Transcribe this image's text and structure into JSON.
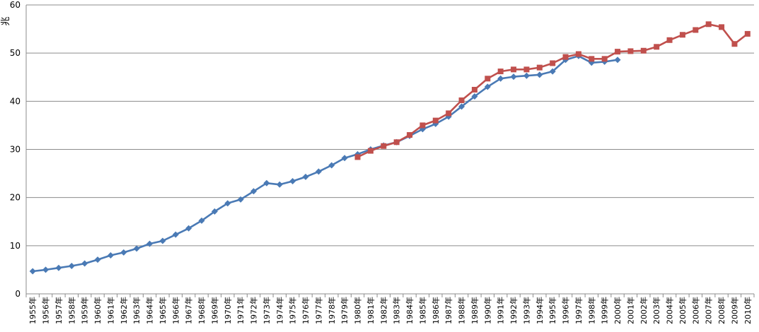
{
  "chart_data": {
    "type": "line",
    "ylabel": "兆",
    "ylim": [
      0,
      60
    ],
    "yticks": [
      0,
      10,
      20,
      30,
      40,
      50,
      60
    ],
    "grid": "horizontal",
    "legend": "none",
    "categories": [
      "1955年",
      "1956年",
      "1957年",
      "1958年",
      "1959年",
      "1960年",
      "1961年",
      "1962年",
      "1963年",
      "1964年",
      "1965年",
      "1966年",
      "1967年",
      "1968年",
      "1969年",
      "1970年",
      "1971年",
      "1972年",
      "1973年",
      "1974年",
      "1975年",
      "1976年",
      "1977年",
      "1978年",
      "1979年",
      "1980年",
      "1981年",
      "1982年",
      "1983年",
      "1984年",
      "1985年",
      "1986年",
      "1987年",
      "1988年",
      "1989年",
      "1990年",
      "1991年",
      "1992年",
      "1993年",
      "1994年",
      "1995年",
      "1996年",
      "1997年",
      "1998年",
      "1999年",
      "2000年",
      "2001年",
      "2002年",
      "2003年",
      "2004年",
      "2005年",
      "2006年",
      "2007年",
      "2008年",
      "2009年",
      "2010年"
    ],
    "series": [
      {
        "color": "#4a7ab5",
        "marker": "diamond",
        "values": [
          4.7,
          5.0,
          5.4,
          5.8,
          6.3,
          7.1,
          8.0,
          8.6,
          9.4,
          10.4,
          11.0,
          12.3,
          13.6,
          15.2,
          17.1,
          18.8,
          19.6,
          21.3,
          23.0,
          22.7,
          23.4,
          24.3,
          25.4,
          26.7,
          28.2,
          29.0,
          30.0,
          30.8,
          31.5,
          32.8,
          34.2,
          35.3,
          36.8,
          38.9,
          41.0,
          43.0,
          44.7,
          45.1,
          45.3,
          45.5,
          46.2,
          48.6,
          49.4,
          48.0,
          48.2,
          48.6,
          null,
          null,
          null,
          null,
          null,
          null,
          null,
          null,
          null,
          null
        ]
      },
      {
        "color": "#c0504d",
        "marker": "square",
        "values": [
          null,
          null,
          null,
          null,
          null,
          null,
          null,
          null,
          null,
          null,
          null,
          null,
          null,
          null,
          null,
          null,
          null,
          null,
          null,
          null,
          null,
          null,
          null,
          null,
          null,
          28.4,
          29.7,
          30.7,
          31.5,
          33.0,
          35.0,
          36.0,
          37.5,
          40.2,
          42.4,
          44.7,
          46.2,
          46.6,
          46.6,
          47.0,
          47.9,
          49.2,
          49.8,
          48.8,
          48.8,
          50.3,
          50.4,
          50.5,
          51.3,
          52.7,
          53.8,
          54.8,
          56.0,
          55.4,
          51.9,
          54.0
        ]
      }
    ]
  }
}
